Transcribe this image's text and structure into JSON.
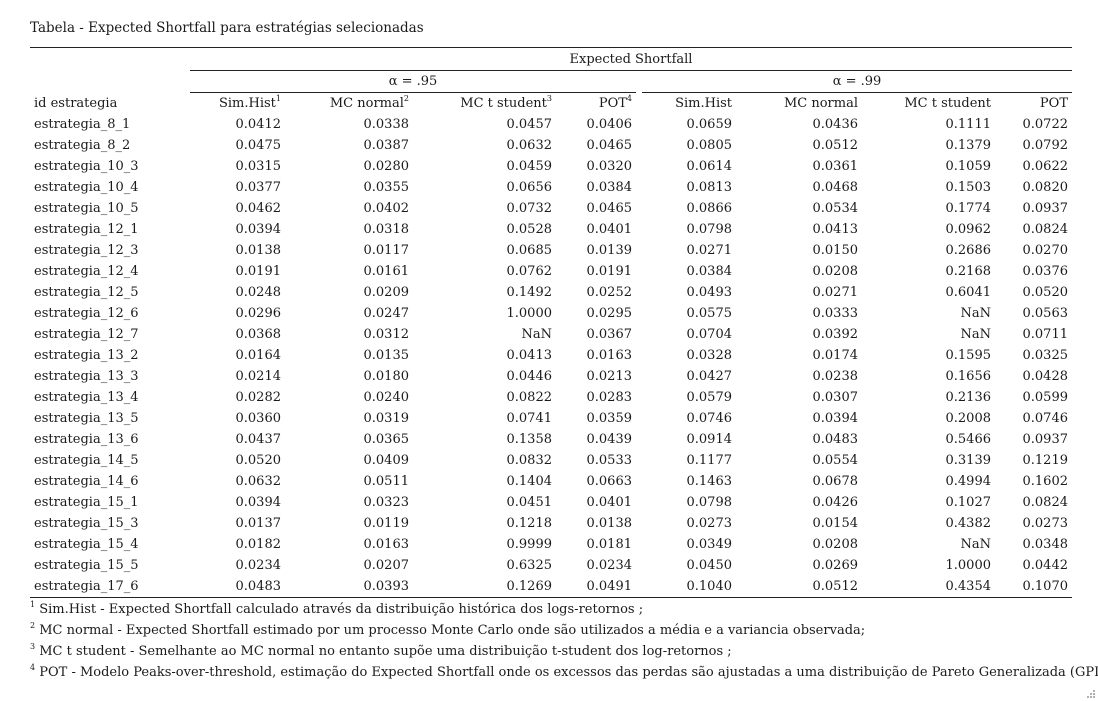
{
  "caption": "Tabela - Expected Shortfall para estratégias selecionadas",
  "header": {
    "group": "Expected Shortfall",
    "alpha95": "α = .95",
    "alpha99": "α = .99",
    "id_col": "id estrategia",
    "cols95": [
      {
        "label": "Sim.Hist",
        "sup": "1"
      },
      {
        "label": "MC normal",
        "sup": "2"
      },
      {
        "label": "MC t student",
        "sup": "3"
      },
      {
        "label": "POT",
        "sup": "4"
      }
    ],
    "cols99": [
      {
        "label": "Sim.Hist",
        "sup": ""
      },
      {
        "label": "MC normal",
        "sup": ""
      },
      {
        "label": "MC t student",
        "sup": ""
      },
      {
        "label": "POT",
        "sup": ""
      }
    ]
  },
  "rows": [
    [
      "estrategia_8_1",
      "0.0412",
      "0.0338",
      "0.0457",
      "0.0406",
      "0.0659",
      "0.0436",
      "0.1111",
      "0.0722"
    ],
    [
      "estrategia_8_2",
      "0.0475",
      "0.0387",
      "0.0632",
      "0.0465",
      "0.0805",
      "0.0512",
      "0.1379",
      "0.0792"
    ],
    [
      "estrategia_10_3",
      "0.0315",
      "0.0280",
      "0.0459",
      "0.0320",
      "0.0614",
      "0.0361",
      "0.1059",
      "0.0622"
    ],
    [
      "estrategia_10_4",
      "0.0377",
      "0.0355",
      "0.0656",
      "0.0384",
      "0.0813",
      "0.0468",
      "0.1503",
      "0.0820"
    ],
    [
      "estrategia_10_5",
      "0.0462",
      "0.0402",
      "0.0732",
      "0.0465",
      "0.0866",
      "0.0534",
      "0.1774",
      "0.0937"
    ],
    [
      "estrategia_12_1",
      "0.0394",
      "0.0318",
      "0.0528",
      "0.0401",
      "0.0798",
      "0.0413",
      "0.0962",
      "0.0824"
    ],
    [
      "estrategia_12_3",
      "0.0138",
      "0.0117",
      "0.0685",
      "0.0139",
      "0.0271",
      "0.0150",
      "0.2686",
      "0.0270"
    ],
    [
      "estrategia_12_4",
      "0.0191",
      "0.0161",
      "0.0762",
      "0.0191",
      "0.0384",
      "0.0208",
      "0.2168",
      "0.0376"
    ],
    [
      "estrategia_12_5",
      "0.0248",
      "0.0209",
      "0.1492",
      "0.0252",
      "0.0493",
      "0.0271",
      "0.6041",
      "0.0520"
    ],
    [
      "estrategia_12_6",
      "0.0296",
      "0.0247",
      "1.0000",
      "0.0295",
      "0.0575",
      "0.0333",
      "NaN",
      "0.0563"
    ],
    [
      "estrategia_12_7",
      "0.0368",
      "0.0312",
      "NaN",
      "0.0367",
      "0.0704",
      "0.0392",
      "NaN",
      "0.0711"
    ],
    [
      "estrategia_13_2",
      "0.0164",
      "0.0135",
      "0.0413",
      "0.0163",
      "0.0328",
      "0.0174",
      "0.1595",
      "0.0325"
    ],
    [
      "estrategia_13_3",
      "0.0214",
      "0.0180",
      "0.0446",
      "0.0213",
      "0.0427",
      "0.0238",
      "0.1656",
      "0.0428"
    ],
    [
      "estrategia_13_4",
      "0.0282",
      "0.0240",
      "0.0822",
      "0.0283",
      "0.0579",
      "0.0307",
      "0.2136",
      "0.0599"
    ],
    [
      "estrategia_13_5",
      "0.0360",
      "0.0319",
      "0.0741",
      "0.0359",
      "0.0746",
      "0.0394",
      "0.2008",
      "0.0746"
    ],
    [
      "estrategia_13_6",
      "0.0437",
      "0.0365",
      "0.1358",
      "0.0439",
      "0.0914",
      "0.0483",
      "0.5466",
      "0.0937"
    ],
    [
      "estrategia_14_5",
      "0.0520",
      "0.0409",
      "0.0832",
      "0.0533",
      "0.1177",
      "0.0554",
      "0.3139",
      "0.1219"
    ],
    [
      "estrategia_14_6",
      "0.0632",
      "0.0511",
      "0.1404",
      "0.0663",
      "0.1463",
      "0.0678",
      "0.4994",
      "0.1602"
    ],
    [
      "estrategia_15_1",
      "0.0394",
      "0.0323",
      "0.0451",
      "0.0401",
      "0.0798",
      "0.0426",
      "0.1027",
      "0.0824"
    ],
    [
      "estrategia_15_3",
      "0.0137",
      "0.0119",
      "0.1218",
      "0.0138",
      "0.0273",
      "0.0154",
      "0.4382",
      "0.0273"
    ],
    [
      "estrategia_15_4",
      "0.0182",
      "0.0163",
      "0.9999",
      "0.0181",
      "0.0349",
      "0.0208",
      "NaN",
      "0.0348"
    ],
    [
      "estrategia_15_5",
      "0.0234",
      "0.0207",
      "0.6325",
      "0.0234",
      "0.0450",
      "0.0269",
      "1.0000",
      "0.0442"
    ],
    [
      "estrategia_17_6",
      "0.0483",
      "0.0393",
      "0.1269",
      "0.0491",
      "0.1040",
      "0.0512",
      "0.4354",
      "0.1070"
    ]
  ],
  "notes": [
    {
      "sup": "1",
      "text": "Sim.Hist - Expected Shortfall calculado através da distribuição histórica dos logs-retornos ;"
    },
    {
      "sup": "2",
      "text": "MC normal - Expected Shortfall estimado por um processo Monte Carlo onde são utilizados a média e a variancia observada;"
    },
    {
      "sup": "3",
      "text": "MC t student - Semelhante ao MC normal no entanto supõe uma distribuição t-student dos log-retornos ;"
    },
    {
      "sup": "4",
      "text": "POT - Modelo Peaks-over-threshold, estimação do Expected Shortfall onde os excessos das perdas são ajustadas a uma distribuição de Pareto Generalizada (GPD) ;"
    }
  ]
}
